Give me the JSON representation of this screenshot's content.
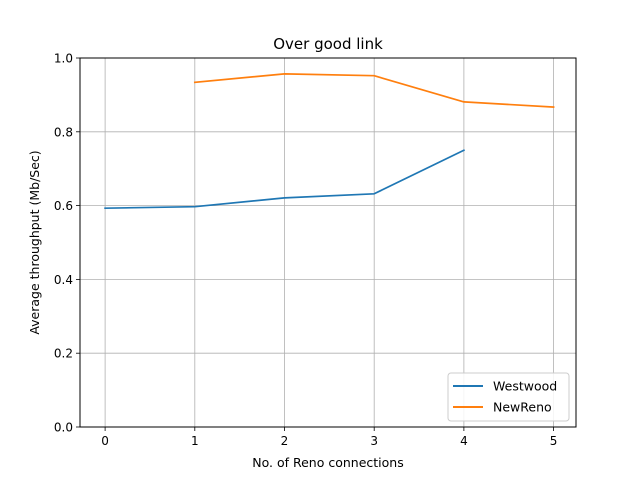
{
  "chart_data": {
    "type": "line",
    "title": "Over good link",
    "xlabel": "No. of Reno connections",
    "ylabel": "Average throughput (Mb/Sec)",
    "xlim": [
      -0.28,
      5.25
    ],
    "ylim": [
      0,
      1.0
    ],
    "xticks": [
      "0",
      "1",
      "2",
      "3",
      "4",
      "5"
    ],
    "yticks": [
      "0.0",
      "0.2",
      "0.4",
      "0.6",
      "0.8",
      "1.0"
    ],
    "grid": true,
    "legend_position": "lower-right",
    "series": [
      {
        "name": "Westwood",
        "color": "#1f77b4",
        "x": [
          0,
          1,
          2,
          3,
          4
        ],
        "y": [
          0.593,
          0.597,
          0.621,
          0.632,
          0.75
        ]
      },
      {
        "name": "NewReno",
        "color": "#ff7f0e",
        "x": [
          1,
          2,
          3,
          4,
          5
        ],
        "y": [
          0.934,
          0.957,
          0.952,
          0.881,
          0.867
        ]
      }
    ]
  }
}
